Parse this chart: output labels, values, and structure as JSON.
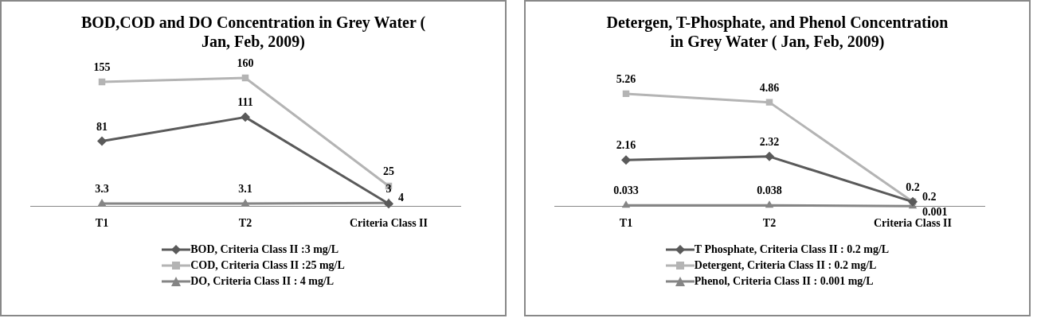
{
  "chart_data": [
    {
      "type": "line",
      "title": "BOD,COD and DO Concentration in Grey Water ( Jan, Feb, 2009)",
      "categories": [
        "T1",
        "T2",
        "Criteria Class II"
      ],
      "series": [
        {
          "name": "BOD, Criteria Class II :3 mg/L",
          "color": "#5a5a5a",
          "marker": "diamond",
          "values": [
            81,
            111,
            3
          ]
        },
        {
          "name": "COD, Criteria Class II :25 mg/L",
          "color": "#b4b4b4",
          "marker": "square",
          "values": [
            155,
            160,
            25
          ]
        },
        {
          "name": "DO, Criteria Class II : 4 mg/L",
          "color": "#858585",
          "marker": "triangle",
          "values": [
            3.3,
            3.1,
            4
          ]
        }
      ],
      "tick_labels": "x",
      "grid": false,
      "legend": "bottom",
      "data_labels": true
    },
    {
      "type": "line",
      "title": "Detergen, T-Phosphate, and  Phenol Concentration in Grey Water ( Jan, Feb, 2009)",
      "categories": [
        "T1",
        "T2",
        "Criteria Class II"
      ],
      "series": [
        {
          "name": "T Phosphate, Criteria Class II : 0.2 mg/L",
          "color": "#5a5a5a",
          "marker": "diamond",
          "values": [
            2.16,
            2.32,
            0.2
          ]
        },
        {
          "name": "Detergent, Criteria Class II : 0.2 mg/L",
          "color": "#b4b4b4",
          "marker": "square",
          "values": [
            5.26,
            4.86,
            0.2
          ]
        },
        {
          "name": "Phenol, Criteria Class II : 0.001 mg/L",
          "color": "#858585",
          "marker": "triangle",
          "values": [
            0.033,
            0.038,
            0.001
          ]
        }
      ],
      "tick_labels": "x",
      "grid": false,
      "legend": "bottom",
      "data_labels": true
    }
  ]
}
